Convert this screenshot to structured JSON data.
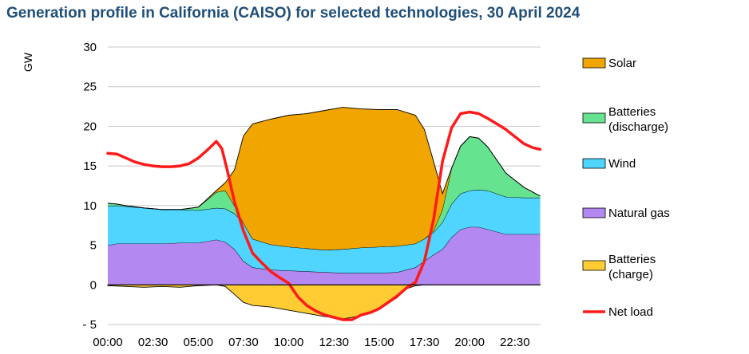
{
  "title": "Generation profile in California (CAISO) for selected technologies, 30 April 2024",
  "chart_data": {
    "type": "area",
    "ylabel": "GW",
    "xlabel": "",
    "ylim": [
      -5,
      30
    ],
    "yticks": [
      30,
      25,
      20,
      15,
      10,
      5,
      0,
      -5
    ],
    "ytick_labels": [
      "30",
      "25",
      "20",
      "15",
      "10",
      "5",
      "0",
      "- 5"
    ],
    "xlim": [
      0,
      23.92
    ],
    "xticks": [
      0,
      2.5,
      5,
      7.5,
      10,
      12.5,
      15,
      17.5,
      20,
      22.5
    ],
    "xtick_labels": [
      "00:00",
      "02:30",
      "05:00",
      "07:30",
      "10:00",
      "12:30",
      "15:00",
      "17:30",
      "20:00",
      "22:30"
    ],
    "grid": true,
    "legend_position": "right",
    "series": [
      {
        "name": "Natural gas",
        "kind": "stack",
        "color": "#b388f0",
        "x": [
          0,
          0.5,
          1,
          2,
          3,
          4,
          5,
          6,
          6.5,
          7,
          7.5,
          8,
          9,
          10,
          11,
          12,
          13,
          14,
          15,
          16,
          17,
          17.5,
          18,
          18.5,
          19,
          19.5,
          20,
          20.5,
          21,
          22,
          23,
          23.9
        ],
        "values": [
          5.0,
          5.2,
          5.2,
          5.2,
          5.2,
          5.3,
          5.3,
          5.7,
          5.4,
          4.5,
          3.0,
          2.2,
          1.9,
          1.8,
          1.7,
          1.6,
          1.5,
          1.5,
          1.5,
          1.6,
          2.2,
          3.0,
          3.8,
          4.5,
          6.0,
          7.0,
          7.3,
          7.3,
          7.0,
          6.4,
          6.4,
          6.4
        ]
      },
      {
        "name": "Wind",
        "kind": "stack",
        "color": "#4fd5ff",
        "x": [
          0,
          0.5,
          1,
          2,
          3,
          4,
          5,
          6,
          6.5,
          7,
          7.5,
          8,
          9,
          10,
          11,
          12,
          13,
          14,
          15,
          16,
          17,
          17.5,
          18,
          18.5,
          19,
          19.5,
          20,
          20.5,
          21,
          22,
          23,
          23.9
        ],
        "values": [
          5.0,
          4.8,
          4.7,
          4.5,
          4.3,
          4.2,
          4.1,
          4.0,
          4.2,
          4.5,
          4.8,
          3.6,
          3.2,
          3.0,
          2.9,
          2.8,
          3.0,
          3.2,
          3.3,
          3.3,
          3.0,
          2.8,
          2.8,
          3.4,
          4.2,
          4.5,
          4.6,
          4.7,
          4.9,
          4.7,
          4.6,
          4.6
        ]
      },
      {
        "name": "Batteries (discharge)",
        "kind": "stack",
        "color": "#66e38f",
        "x": [
          0,
          0.5,
          1,
          2,
          3,
          4,
          5,
          6,
          6.5,
          7,
          7.5,
          8,
          9,
          10,
          11,
          12,
          13,
          14,
          15,
          16,
          17,
          17.5,
          18,
          18.5,
          19,
          19.5,
          20,
          20.5,
          21,
          22,
          23,
          23.9
        ],
        "values": [
          0.3,
          0.2,
          0.1,
          0,
          0,
          0,
          0.4,
          2.0,
          2.3,
          1.0,
          0,
          0,
          0,
          0,
          0,
          0,
          0,
          0,
          0,
          0,
          0,
          0,
          0.2,
          1.6,
          4.5,
          6.0,
          6.8,
          6.5,
          5.5,
          3.0,
          1.3,
          0.2
        ]
      },
      {
        "name": "Solar",
        "kind": "stack",
        "color": "#f0a500",
        "x": [
          0,
          0.5,
          1,
          2,
          3,
          4,
          5,
          6,
          6.5,
          7,
          7.5,
          8,
          9,
          10,
          11,
          12,
          13,
          14,
          15,
          16,
          17,
          17.5,
          18,
          18.5,
          19,
          19.5,
          20,
          20.5,
          21,
          22,
          23,
          23.9
        ],
        "values": [
          0,
          0,
          0,
          0,
          0,
          0,
          0,
          0.2,
          1.0,
          4.5,
          11.0,
          14.5,
          15.8,
          16.6,
          17.0,
          17.6,
          17.9,
          17.5,
          17.3,
          17.2,
          16.2,
          13.8,
          8.8,
          2.0,
          0,
          0,
          0,
          0,
          0,
          0,
          0,
          0
        ]
      },
      {
        "name": "Batteries (charge)",
        "kind": "negative",
        "color": "#ffcc33",
        "x": [
          0,
          1,
          2,
          3,
          4,
          5,
          6,
          6.5,
          7,
          7.5,
          8,
          9,
          10,
          11,
          12,
          13,
          14,
          15,
          16,
          16.5,
          17,
          17.5,
          18,
          19,
          20,
          21,
          22,
          23,
          23.9
        ],
        "values": [
          -0.1,
          -0.2,
          -0.3,
          -0.2,
          -0.3,
          -0.1,
          0,
          -0.2,
          -1.2,
          -2.2,
          -2.6,
          -2.8,
          -3.2,
          -3.6,
          -4.0,
          -4.3,
          -3.9,
          -3.1,
          -1.6,
          -0.5,
          -0.1,
          0,
          0,
          0,
          0,
          0,
          0,
          0,
          0
        ]
      },
      {
        "name": "Net load",
        "kind": "line",
        "color": "#ff1a1a",
        "x": [
          0,
          0.5,
          1,
          1.5,
          2,
          2.5,
          3,
          3.5,
          4,
          4.5,
          5,
          5.5,
          6,
          6.3,
          6.6,
          7,
          7.5,
          8,
          8.5,
          9,
          9.5,
          10,
          10.5,
          11,
          11.5,
          12,
          12.5,
          13,
          13.5,
          14,
          14.5,
          15,
          15.5,
          16,
          16.5,
          17,
          17.5,
          18,
          18.5,
          19,
          19.5,
          20,
          20.5,
          21,
          21.5,
          22,
          22.5,
          23,
          23.5,
          23.9
        ],
        "values": [
          16.6,
          16.5,
          16.0,
          15.5,
          15.2,
          15.0,
          14.9,
          14.9,
          15.0,
          15.3,
          16.0,
          17.0,
          18.1,
          17.2,
          14.5,
          10.5,
          6.8,
          4.0,
          2.8,
          1.7,
          0.9,
          0.2,
          -1.5,
          -2.6,
          -3.3,
          -3.8,
          -4.1,
          -4.4,
          -4.4,
          -3.8,
          -3.5,
          -3.0,
          -2.2,
          -1.4,
          -0.4,
          0.3,
          3.0,
          8.2,
          15.6,
          19.8,
          21.6,
          21.8,
          21.6,
          21.0,
          20.3,
          19.6,
          18.7,
          17.8,
          17.3,
          17.1
        ]
      }
    ],
    "legend": [
      {
        "label": "Solar",
        "color": "#f0a500",
        "kind": "box"
      },
      {
        "label": "Batteries",
        "label2": "(discharge)",
        "color": "#66e38f",
        "kind": "box"
      },
      {
        "label": "Wind",
        "color": "#4fd5ff",
        "kind": "box"
      },
      {
        "label": "Natural gas",
        "color": "#b388f0",
        "kind": "box"
      },
      {
        "label": "Batteries",
        "label2": "(charge)",
        "color": "#ffcc33",
        "kind": "box"
      },
      {
        "label": "Net load",
        "color": "#ff1a1a",
        "kind": "line"
      }
    ]
  }
}
